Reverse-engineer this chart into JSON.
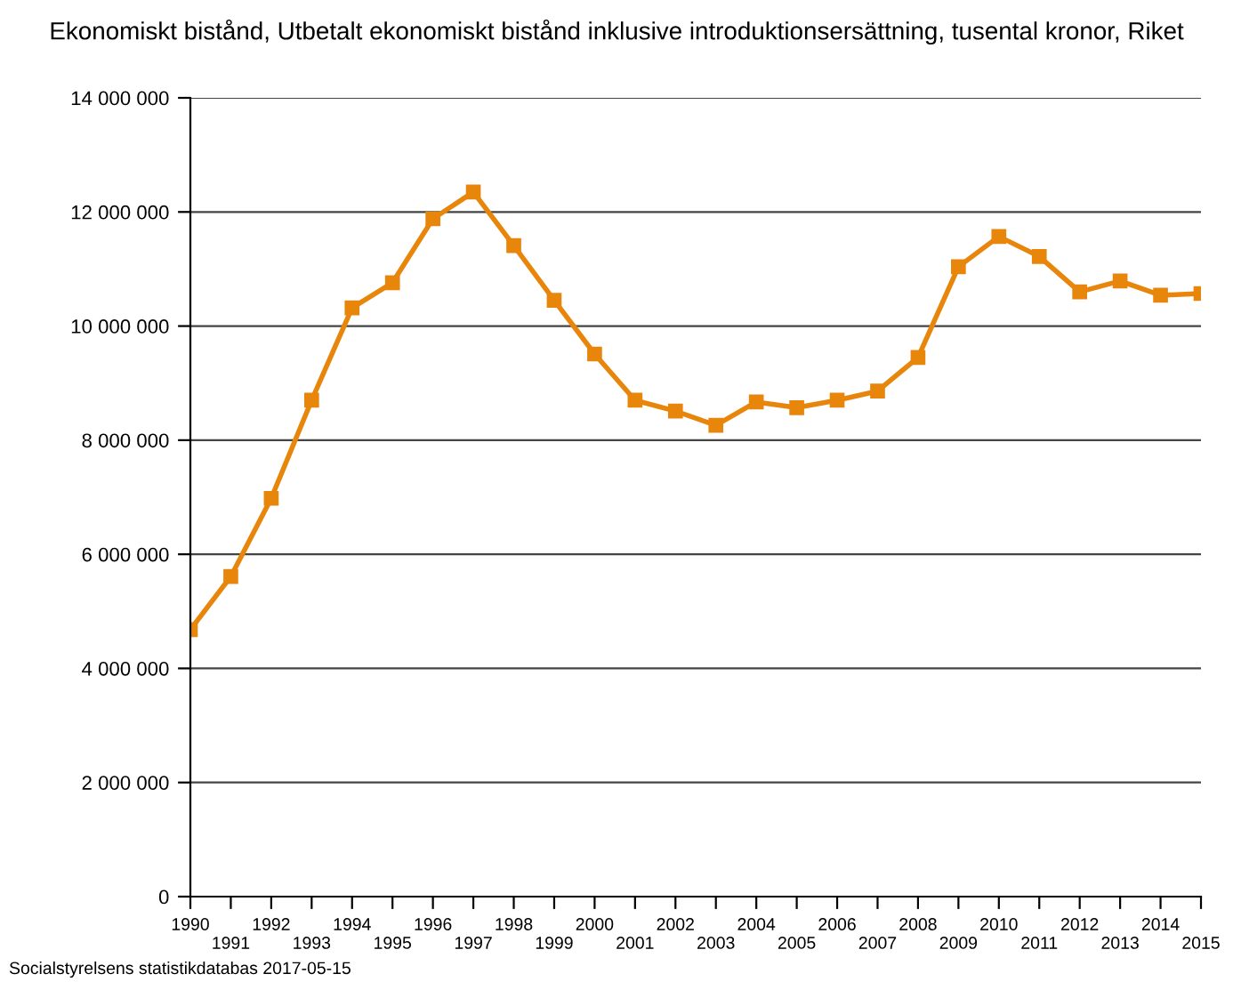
{
  "chart_data": {
    "type": "line",
    "title": "Ekonomiskt bistånd, Utbetalt ekonomiskt bistånd inklusive introduktionsersättning, tusental kronor, Riket",
    "categories": [
      "1990",
      "1991",
      "1992",
      "1993",
      "1994",
      "1995",
      "1996",
      "1997",
      "1998",
      "1999",
      "2000",
      "2001",
      "2002",
      "2003",
      "2004",
      "2005",
      "2006",
      "2007",
      "2008",
      "2009",
      "2010",
      "2011",
      "2012",
      "2013",
      "2014",
      "2015"
    ],
    "series": [
      {
        "color": "#e8860c",
        "values": [
          4680000,
          5610000,
          6980000,
          8700000,
          10320000,
          10760000,
          11880000,
          12350000,
          11410000,
          10450000,
          9510000,
          8700000,
          8510000,
          8260000,
          8670000,
          8570000,
          8700000,
          8860000,
          9450000,
          11040000,
          11570000,
          11220000,
          10600000,
          10790000,
          10540000,
          10570000
        ]
      }
    ],
    "ylim": [
      0,
      14000000
    ],
    "yticks": [
      {
        "value": 0,
        "label": "0"
      },
      {
        "value": 2000000,
        "label": "2 000 000"
      },
      {
        "value": 4000000,
        "label": "4 000 000"
      },
      {
        "value": 6000000,
        "label": "6 000 000"
      },
      {
        "value": 8000000,
        "label": "8 000 000"
      },
      {
        "value": 10000000,
        "label": "10 000 000"
      },
      {
        "value": 12000000,
        "label": "12 000 000"
      },
      {
        "value": 14000000,
        "label": "14 000 000"
      }
    ],
    "grid": "y",
    "marker": "square",
    "line_style": "solid",
    "annotations": [
      "Socialstyrelsens statistikdatabas 2017-05-15"
    ]
  }
}
